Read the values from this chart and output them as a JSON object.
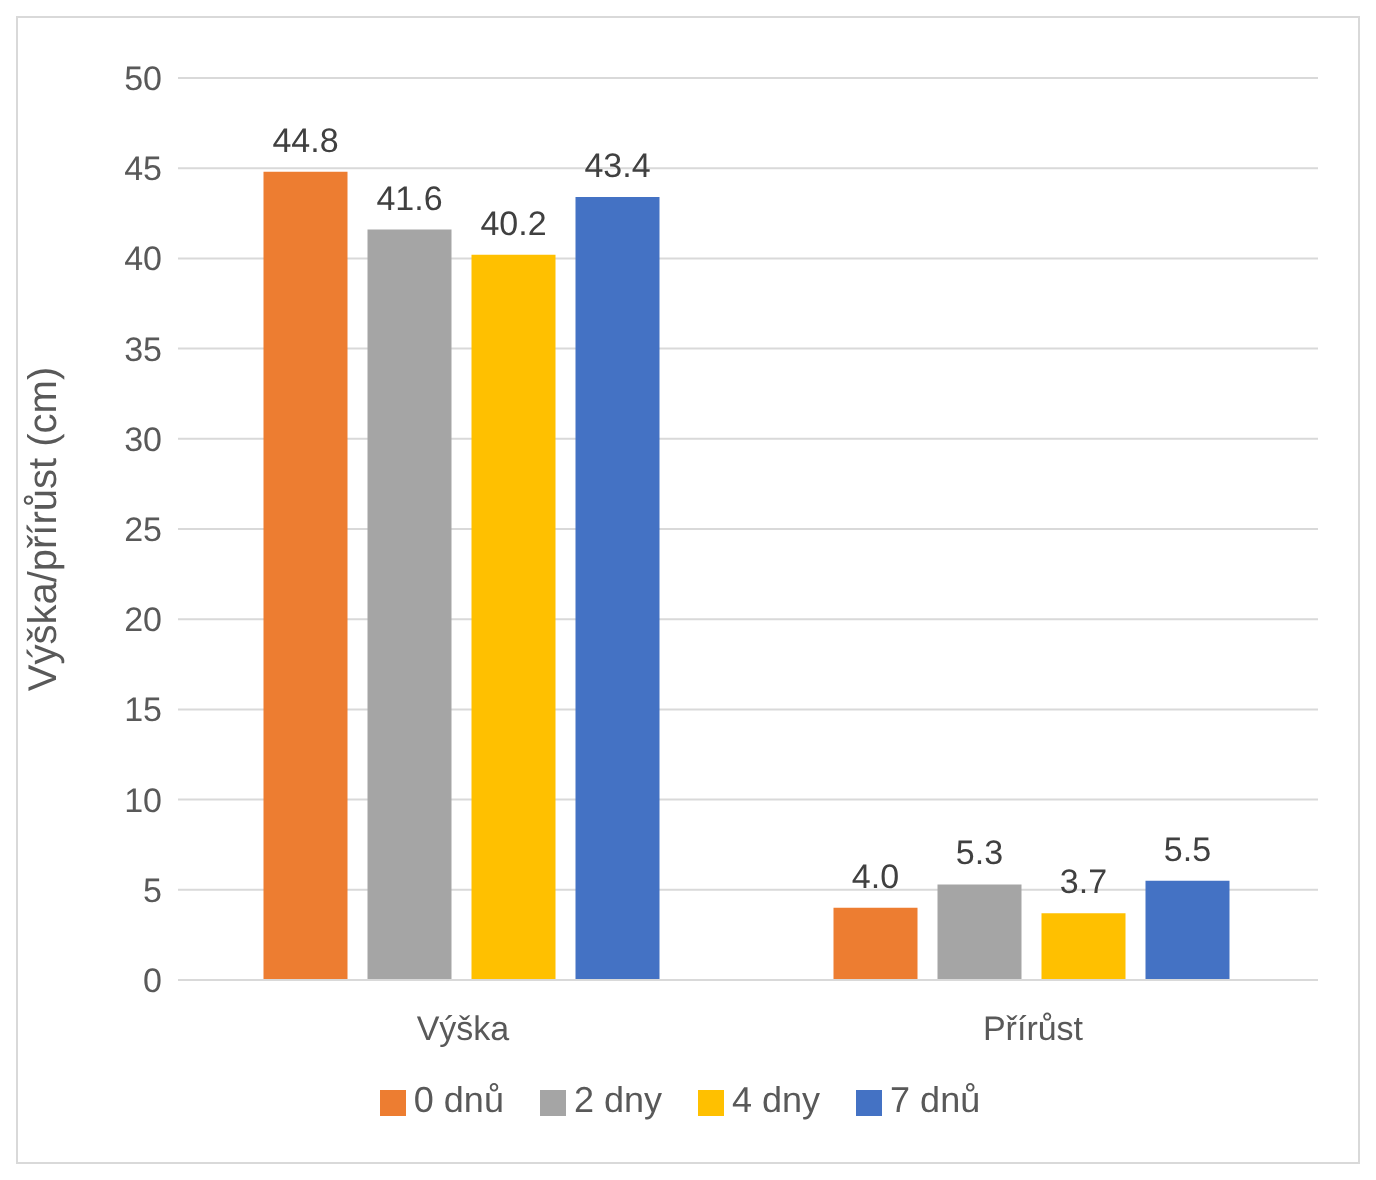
{
  "chart_data": {
    "type": "bar",
    "ylabel": "Výška/přírůst (cm)",
    "categories": [
      "Výška",
      "Přírůst"
    ],
    "series": [
      {
        "name": "0 dnů",
        "color": "#ed7d31",
        "values": [
          44.8,
          4.0
        ],
        "value_labels": [
          "44.8",
          "4.0"
        ]
      },
      {
        "name": "2 dny",
        "color": "#a5a5a5",
        "values": [
          41.6,
          5.3
        ],
        "value_labels": [
          "41.6",
          "5.3"
        ]
      },
      {
        "name": "4 dny",
        "color": "#ffc000",
        "values": [
          40.2,
          3.7
        ],
        "value_labels": [
          "40.2",
          "3.7"
        ]
      },
      {
        "name": "7 dnů",
        "color": "#4472c4",
        "values": [
          43.4,
          5.5
        ],
        "value_labels": [
          "43.4",
          "5.5"
        ]
      }
    ],
    "ylim": [
      0,
      50
    ],
    "yticks": [
      0,
      5,
      10,
      15,
      20,
      25,
      30,
      35,
      40,
      45,
      50
    ],
    "grid": "y",
    "legend": "bottom"
  }
}
